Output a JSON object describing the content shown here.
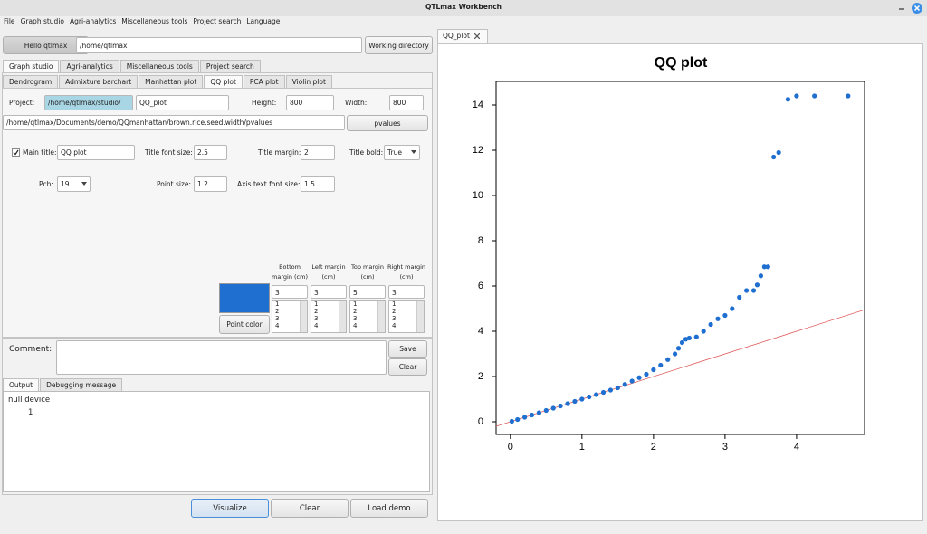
{
  "window": {
    "title": "QTLmax Workbench"
  },
  "menu": [
    "File",
    "Graph studio",
    "Agri-analytics",
    "Miscellaneous tools",
    "Project search",
    "Language"
  ],
  "toolbar": {
    "user_button": "Hello qtlmax",
    "home_path": "/home/qtlmax",
    "working_dir_button": "Working directory"
  },
  "main_tabs": [
    "Graph studio",
    "Agri-analytics",
    "Miscellaneous tools",
    "Project search"
  ],
  "sub_tabs": [
    "Dendrogram",
    "Admixture barchart",
    "Manhattan plot",
    "QQ plot",
    "PCA plot",
    "Violin plot"
  ],
  "form": {
    "project_label": "Project:",
    "project_path": "/home/qtlmax/studio/",
    "project_name": "QQ_plot",
    "height_label": "Height:",
    "height": "800",
    "width_label": "Width:",
    "width": "800",
    "file_path": "/home/qtlmax/Documents/demo/QQmanhattan/brown.rice.seed.width/pvalues",
    "file_button": "pvalues",
    "main_title_label": "Main title:",
    "main_title": "QQ plot",
    "title_font_size_label": "Title font size:",
    "title_font_size": "2.5",
    "title_margin_label": "Title margin:",
    "title_margin": "2",
    "title_bold_label": "Title bold:",
    "title_bold": "True",
    "pch_label": "Pch:",
    "pch": "19",
    "point_size_label": "Point size:",
    "point_size": "1.2",
    "axis_text_font_size_label": "Axis text font size:",
    "axis_text_font_size": "1.5",
    "point_color_button": "Point color",
    "margins": [
      {
        "label": "Bottom margin (cm)",
        "value": "3"
      },
      {
        "label": "Left margin (cm)",
        "value": "3"
      },
      {
        "label": "Top margin (cm)",
        "value": "5"
      },
      {
        "label": "Right margin (cm)",
        "value": "3"
      }
    ],
    "margin_options": [
      "1",
      "2",
      "3",
      "4"
    ],
    "comment_label": "Comment:",
    "save_button": "Save",
    "clear_button": "Clear"
  },
  "output_tabs": [
    "Output",
    "Debugging message"
  ],
  "output_lines": [
    "null device",
    "1"
  ],
  "bottom_buttons": [
    "Visualize",
    "Clear",
    "Load demo"
  ],
  "plot_tab": "QQ_plot",
  "chart_data": {
    "type": "scatter",
    "title": "QQ plot",
    "color": "#1f6fd0",
    "x": [
      0.02,
      0.1,
      0.2,
      0.3,
      0.4,
      0.5,
      0.6,
      0.7,
      0.8,
      0.9,
      1.0,
      1.1,
      1.2,
      1.3,
      1.4,
      1.5,
      1.6,
      1.7,
      1.8,
      1.9,
      2.0,
      2.1,
      2.2,
      2.3,
      2.35,
      2.4,
      2.45,
      2.5,
      2.6,
      2.7,
      2.8,
      2.9,
      3.0,
      3.1,
      3.2,
      3.3,
      3.4,
      3.45,
      3.5,
      3.55,
      3.6,
      3.68,
      3.75,
      3.88,
      4.0,
      4.25,
      4.72
    ],
    "values": [
      0.02,
      0.1,
      0.2,
      0.3,
      0.4,
      0.5,
      0.6,
      0.7,
      0.8,
      0.9,
      1.0,
      1.1,
      1.2,
      1.3,
      1.4,
      1.5,
      1.65,
      1.8,
      1.95,
      2.1,
      2.3,
      2.5,
      2.75,
      3.0,
      3.25,
      3.5,
      3.65,
      3.7,
      3.75,
      4.0,
      4.3,
      4.55,
      4.7,
      5.0,
      5.5,
      5.8,
      5.8,
      6.05,
      6.45,
      6.85,
      6.85,
      11.7,
      11.9,
      14.25,
      14.4,
      14.4,
      14.4
    ],
    "reference_line": {
      "intercept": 0,
      "slope": 1,
      "color": "#e05a5a"
    },
    "xlim": [
      -0.2,
      4.95
    ],
    "ylim": [
      -0.56,
      15.04
    ],
    "xticks": [
      0,
      1,
      2,
      3,
      4
    ],
    "yticks": [
      0,
      2,
      4,
      6,
      8,
      10,
      12,
      14
    ]
  }
}
